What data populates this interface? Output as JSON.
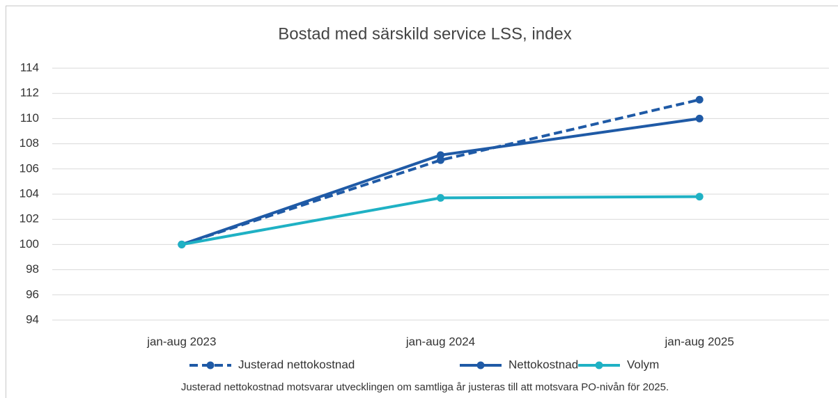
{
  "chart_data": {
    "type": "line",
    "title": "Bostad med särskild service LSS, index",
    "categories": [
      "jan-aug 2023",
      "jan-aug 2024",
      "jan-aug 2025"
    ],
    "series": [
      {
        "name": "Justerad nettokostnad",
        "color": "#1f5aa6",
        "dashed": true,
        "values": [
          100,
          106.7,
          111.5
        ]
      },
      {
        "name": "Nettokostnad",
        "color": "#1f5aa6",
        "dashed": false,
        "values": [
          100,
          107.1,
          110.0
        ]
      },
      {
        "name": "Volym",
        "color": "#1fb1c4",
        "dashed": false,
        "values": [
          100,
          103.7,
          103.8
        ]
      }
    ],
    "ylim": [
      94,
      114
    ],
    "yticks": [
      94,
      96,
      98,
      100,
      102,
      104,
      106,
      108,
      110,
      112,
      114
    ],
    "grid": true,
    "legend": "bottom",
    "note": "Justerad nettokostnad motsvarar utvecklingen om samtliga år justeras till att motsvara PO-nivån för 2025."
  }
}
